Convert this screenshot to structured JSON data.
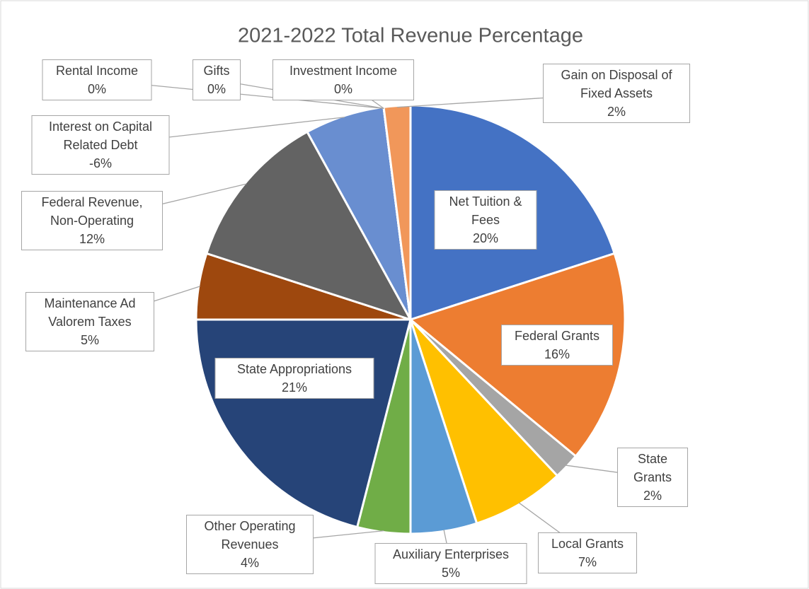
{
  "chart_data": {
    "type": "pie",
    "title": "2021-2022 Total Revenue Percentage",
    "categories": [
      "Net Tuition & Fees",
      "Federal Grants",
      "State Grants",
      "Local Grants",
      "Auxiliary Enterprises",
      "Other Operating Revenues",
      "State Appropriations",
      "Maintenance Ad Valorem Taxes",
      "Federal Revenue, Non-Operating",
      "Interest on Capital Related Debt",
      "Rental Income",
      "Gifts",
      "Investment Income",
      "Gain on Disposal of Fixed Assets"
    ],
    "values": [
      20,
      16,
      2,
      7,
      5,
      4,
      21,
      5,
      12,
      -6,
      0,
      0,
      0,
      2
    ],
    "value_labels": [
      "20%",
      "16%",
      "2%",
      "7%",
      "5%",
      "4%",
      "21%",
      "5%",
      "12%",
      "-6%",
      "0%",
      "0%",
      "0%",
      "2%"
    ],
    "colors": [
      "#4472c4",
      "#ed7d31",
      "#a5a5a5",
      "#ffc000",
      "#5b9bd5",
      "#70ad47",
      "#264478",
      "#9e480e",
      "#636363",
      "#698ed0",
      "#997300",
      "#255e91",
      "#43682b",
      "#f1975a"
    ]
  }
}
